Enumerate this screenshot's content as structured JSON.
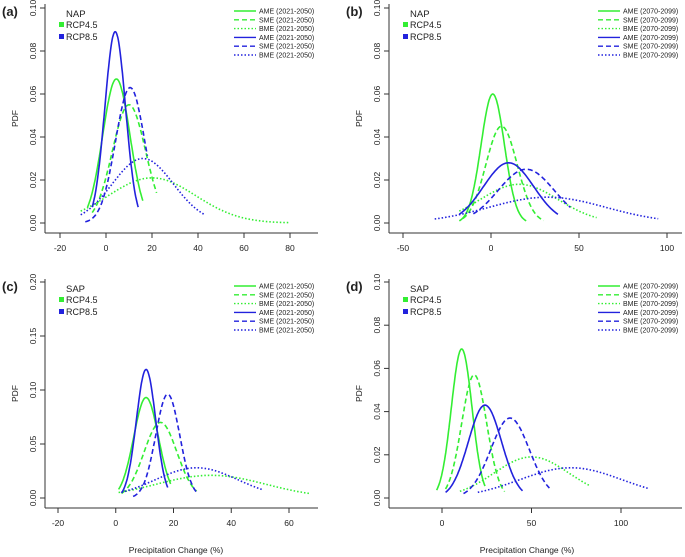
{
  "figure": {
    "xlabel": "Precipitation Change (%)",
    "ylabel": "PDF"
  },
  "colors": {
    "rcp45": "#33ee33",
    "rcp85": "#2222dd"
  },
  "chart_data": [
    {
      "type": "line",
      "panel_label": "(a)",
      "region": "NAP",
      "xlim": [
        -20,
        80
      ],
      "xticks": [
        "-20",
        "0",
        "20",
        "40",
        "60",
        "80"
      ],
      "ylim": [
        0,
        0.1
      ],
      "yticks": [
        "0.00",
        "0.02",
        "0.04",
        "0.06",
        "0.08",
        "0.10"
      ],
      "rcp_legend": [
        "RCP4.5",
        "RCP8.5"
      ],
      "series": [
        {
          "name": "AME (2021-2050)",
          "scenario": "RCP4.5",
          "style": "solid",
          "mean": 4.5,
          "peak": 0.067,
          "x_range": [
            -8,
            16
          ]
        },
        {
          "name": "SME (2021-2050)",
          "scenario": "RCP4.5",
          "style": "dashed",
          "mean": 10,
          "peak": 0.055,
          "x_range": [
            -6,
            22
          ]
        },
        {
          "name": "BME (2021-2050)",
          "scenario": "RCP4.5",
          "style": "dotted",
          "mean": 20,
          "peak": 0.021,
          "x_range": [
            -11,
            80
          ]
        },
        {
          "name": "AME (2021-2050)",
          "scenario": "RCP8.5",
          "style": "solid",
          "mean": 4,
          "peak": 0.089,
          "x_range": [
            -6,
            14
          ]
        },
        {
          "name": "SME (2021-2050)",
          "scenario": "RCP8.5",
          "style": "dashed",
          "mean": 10.5,
          "peak": 0.063,
          "x_range": [
            -9,
            18
          ]
        },
        {
          "name": "BME (2021-2050)",
          "scenario": "RCP8.5",
          "style": "dotted",
          "mean": 16,
          "peak": 0.03,
          "x_range": [
            -11,
            43
          ]
        }
      ]
    },
    {
      "type": "line",
      "panel_label": "(b)",
      "region": "NAP",
      "xlim": [
        -50,
        100
      ],
      "xticks": [
        "-50",
        "0",
        "50",
        "100"
      ],
      "ylim": [
        0,
        0.1
      ],
      "yticks": [
        "0.00",
        "0.02",
        "0.04",
        "0.06",
        "0.08",
        "0.10"
      ],
      "rcp_legend": [
        "RCP4.5",
        "RCP8.5"
      ],
      "series": [
        {
          "name": "AME (2070-2099)",
          "scenario": "RCP4.5",
          "style": "solid",
          "mean": 1,
          "peak": 0.06,
          "x_range": [
            -18,
            20
          ]
        },
        {
          "name": "SME (2070-2099)",
          "scenario": "RCP4.5",
          "style": "dashed",
          "mean": 6,
          "peak": 0.045,
          "x_range": [
            -16,
            30
          ]
        },
        {
          "name": "BME (2070-2099)",
          "scenario": "RCP4.5",
          "style": "dotted",
          "mean": 16,
          "peak": 0.018,
          "x_range": [
            -18,
            60
          ]
        },
        {
          "name": "AME (2070-2099)",
          "scenario": "RCP8.5",
          "style": "solid",
          "mean": 10,
          "peak": 0.028,
          "x_range": [
            -18,
            38
          ]
        },
        {
          "name": "SME (2070-2099)",
          "scenario": "RCP8.5",
          "style": "dashed",
          "mean": 20,
          "peak": 0.025,
          "x_range": [
            -10,
            45
          ]
        },
        {
          "name": "BME (2070-2099)",
          "scenario": "RCP8.5",
          "style": "dotted",
          "mean": 32,
          "peak": 0.012,
          "x_range": [
            -32,
            95
          ]
        }
      ]
    },
    {
      "type": "line",
      "panel_label": "(c)",
      "region": "SAP",
      "xlim": [
        -20,
        70
      ],
      "xticks": [
        "-20",
        "0",
        "20",
        "40",
        "60"
      ],
      "ylim": [
        0,
        0.2
      ],
      "yticks": [
        "0.00",
        "0.05",
        "0.10",
        "0.15",
        "0.20"
      ],
      "rcp_legend": [
        "RCP4.5",
        "RCP8.5"
      ],
      "series": [
        {
          "name": "AME (2021-2050)",
          "scenario": "RCP4.5",
          "style": "solid",
          "mean": 10.5,
          "peak": 0.093,
          "x_range": [
            1,
            19
          ]
        },
        {
          "name": "SME (2021-2050)",
          "scenario": "RCP4.5",
          "style": "dashed",
          "mean": 15.5,
          "peak": 0.07,
          "x_range": [
            2,
            28
          ]
        },
        {
          "name": "BME (2021-2050)",
          "scenario": "RCP4.5",
          "style": "dotted",
          "mean": 33,
          "peak": 0.021,
          "x_range": [
            1,
            67
          ]
        },
        {
          "name": "AME (2021-2050)",
          "scenario": "RCP8.5",
          "style": "solid",
          "mean": 10.5,
          "peak": 0.119,
          "x_range": [
            2,
            18
          ]
        },
        {
          "name": "SME (2021-2050)",
          "scenario": "RCP8.5",
          "style": "dashed",
          "mean": 18,
          "peak": 0.096,
          "x_range": [
            6,
            28
          ]
        },
        {
          "name": "BME (2021-2050)",
          "scenario": "RCP8.5",
          "style": "dotted",
          "mean": 28,
          "peak": 0.028,
          "x_range": [
            2,
            51
          ]
        }
      ]
    },
    {
      "type": "line",
      "panel_label": "(d)",
      "region": "SAP",
      "xlim": [
        -20,
        130
      ],
      "xticks": [
        "0",
        "50",
        "100"
      ],
      "ylim": [
        0,
        0.1
      ],
      "yticks": [
        "0.00",
        "0.02",
        "0.04",
        "0.06",
        "0.08",
        "0.10"
      ],
      "rcp_legend": [
        "RCP4.5",
        "RCP8.5"
      ],
      "series": [
        {
          "name": "AME (2070-2099)",
          "scenario": "RCP4.5",
          "style": "solid",
          "mean": 11,
          "peak": 0.069,
          "x_range": [
            -3,
            24
          ]
        },
        {
          "name": "SME (2070-2099)",
          "scenario": "RCP4.5",
          "style": "dashed",
          "mean": 18,
          "peak": 0.057,
          "x_range": [
            2,
            35
          ]
        },
        {
          "name": "BME (2070-2099)",
          "scenario": "RCP4.5",
          "style": "dotted",
          "mean": 50,
          "peak": 0.019,
          "x_range": [
            10,
            83
          ]
        },
        {
          "name": "AME (2070-2099)",
          "scenario": "RCP8.5",
          "style": "solid",
          "mean": 24,
          "peak": 0.043,
          "x_range": [
            2,
            45
          ]
        },
        {
          "name": "SME (2070-2099)",
          "scenario": "RCP8.5",
          "style": "dashed",
          "mean": 38,
          "peak": 0.037,
          "x_range": [
            12,
            60
          ]
        },
        {
          "name": "BME (2070-2099)",
          "scenario": "RCP8.5",
          "style": "dotted",
          "mean": 72,
          "peak": 0.014,
          "x_range": [
            20,
            115
          ]
        }
      ]
    }
  ]
}
